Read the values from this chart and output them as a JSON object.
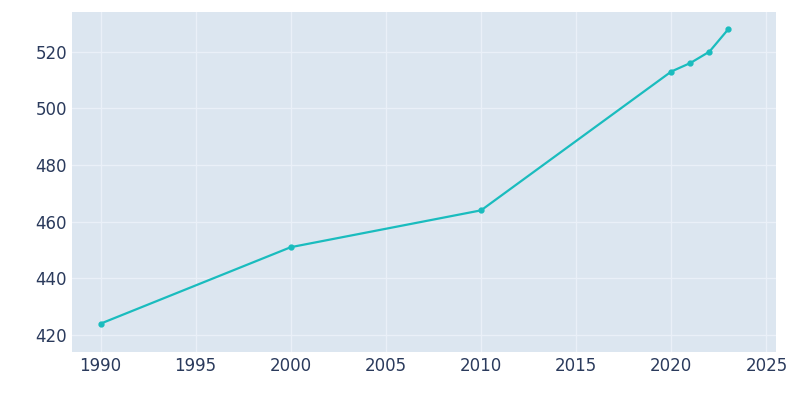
{
  "years": [
    1990,
    2000,
    2010,
    2020,
    2021,
    2022,
    2023
  ],
  "population": [
    424,
    451,
    464,
    513,
    516,
    520,
    528
  ],
  "line_color": "#1abcbe",
  "bg_color": "#dce6f0",
  "plot_bg_color": "#dce6f0",
  "outer_bg_color": "#ffffff",
  "grid_color": "#eaf0f8",
  "text_color": "#2a3a5c",
  "xlim": [
    1988.5,
    2025.5
  ],
  "ylim": [
    414,
    534
  ],
  "xticks": [
    1990,
    1995,
    2000,
    2005,
    2010,
    2015,
    2020,
    2025
  ],
  "yticks": [
    420,
    440,
    460,
    480,
    500,
    520
  ],
  "line_width": 1.6,
  "marker": "o",
  "marker_size": 3.5,
  "tick_fontsize": 12
}
